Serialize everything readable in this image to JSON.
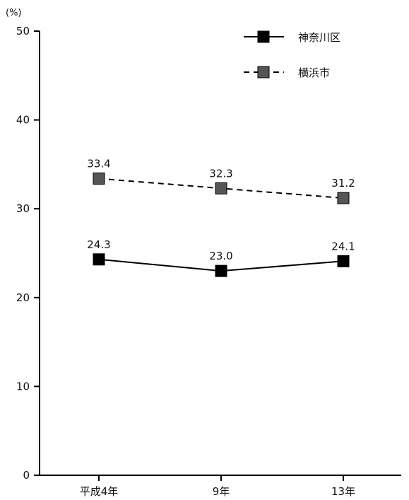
{
  "chart_data": {
    "type": "line",
    "ylabel": "(%)",
    "ylim": [
      0,
      50
    ],
    "yticks": [
      0,
      10,
      20,
      30,
      40,
      50
    ],
    "categories": [
      "平成4年",
      "9年",
      "13年"
    ],
    "series": [
      {
        "name": "神奈川区",
        "line_style": "solid",
        "marker_color": "#000000",
        "values": [
          24.3,
          23.0,
          24.1
        ],
        "labels": [
          "24.3",
          "23.0",
          "24.1"
        ]
      },
      {
        "name": "横浜市",
        "line_style": "dashed",
        "marker_color": "#555555",
        "values": [
          33.4,
          32.3,
          31.2
        ],
        "labels": [
          "33.4",
          "32.3",
          "31.2"
        ]
      }
    ],
    "legend_position": "top-right",
    "grid": false
  }
}
